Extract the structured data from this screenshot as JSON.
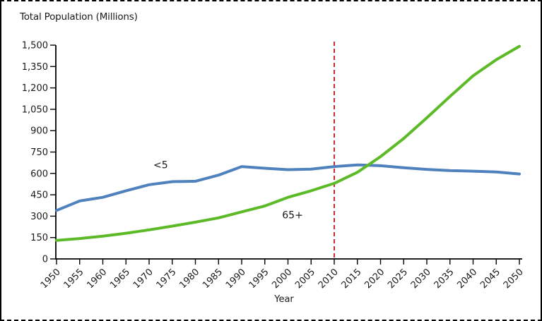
{
  "chart_data": {
    "type": "line",
    "title": "Total Population (Millions)",
    "xlabel": "Year",
    "ylabel": "",
    "xlim": [
      1950,
      2050
    ],
    "ylim": [
      0,
      1500
    ],
    "grid": false,
    "legend_position": "none",
    "x": [
      1950,
      1955,
      1960,
      1965,
      1970,
      1975,
      1980,
      1985,
      1990,
      1995,
      2000,
      2005,
      2010,
      2015,
      2020,
      2025,
      2030,
      2035,
      2040,
      2045,
      2050
    ],
    "x_tick_labels": [
      "1950",
      "1955",
      "1960",
      "1965",
      "1970",
      "1975",
      "1980",
      "1985",
      "1990",
      "1995",
      "2000",
      "2005",
      "2010",
      "2015",
      "2020",
      "2025",
      "2030",
      "2035",
      "2040",
      "2045",
      "2050"
    ],
    "y_ticks": [
      0,
      150,
      300,
      450,
      600,
      750,
      900,
      1050,
      1200,
      1350,
      1500
    ],
    "y_tick_labels": [
      "0",
      "150",
      "300",
      "450",
      "600",
      "750",
      "900",
      "1,050",
      "1,200",
      "1,350",
      "1,500"
    ],
    "series": [
      {
        "name": "<5",
        "color": "#4f81bd",
        "values": [
          340,
          407,
          432,
          478,
          521,
          542,
          545,
          588,
          648,
          636,
          626,
          630,
          648,
          660,
          654,
          640,
          628,
          620,
          616,
          610,
          596
        ]
      },
      {
        "name": "65+",
        "color": "#5cba27",
        "values": [
          130,
          143,
          160,
          180,
          204,
          230,
          258,
          288,
          330,
          372,
          432,
          478,
          530,
          608,
          718,
          845,
          990,
          1140,
          1285,
          1398,
          1492
        ]
      }
    ],
    "annotations": [
      {
        "text": "<5",
        "x": 1972.5,
        "y": 660
      },
      {
        "text": "65+",
        "x": 2001,
        "y": 310
      }
    ],
    "reference_line": {
      "type": "vertical-dashed",
      "x": 2010,
      "color": "#cc2a2a"
    },
    "axis_color": "#000000",
    "text_color": "#1a1a1a"
  }
}
